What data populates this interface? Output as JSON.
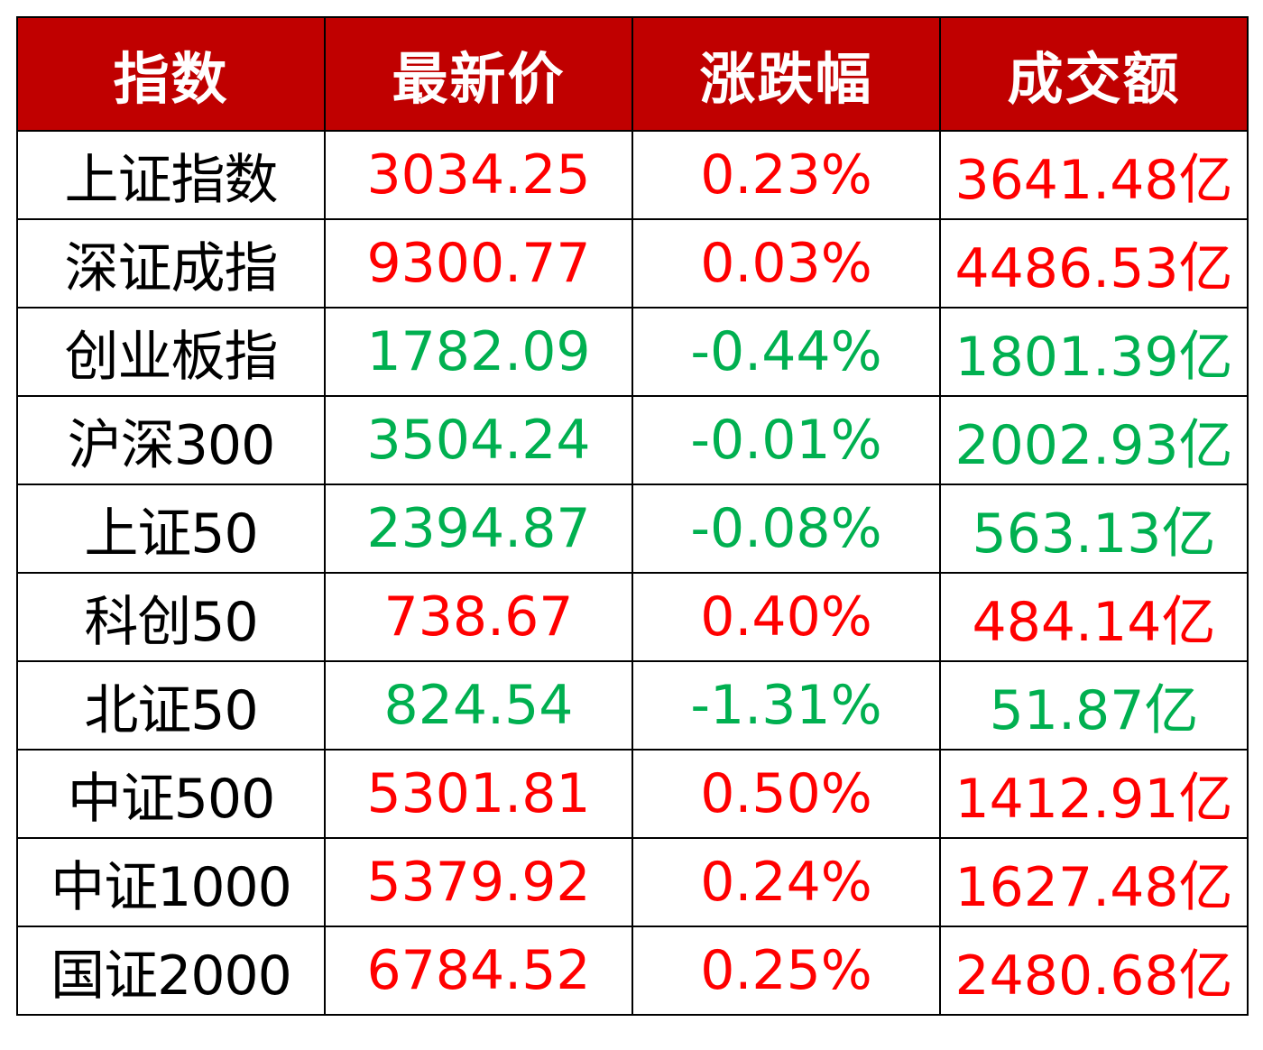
{
  "table": {
    "headers": [
      "指数",
      "最新价",
      "涨跌幅",
      "成交额"
    ],
    "rows": [
      {
        "name": "上证指数",
        "price": "3034.25",
        "change": "0.23%",
        "turnover": "3641.48亿",
        "trend": "up"
      },
      {
        "name": "深证成指",
        "price": "9300.77",
        "change": "0.03%",
        "turnover": "4486.53亿",
        "trend": "up"
      },
      {
        "name": "创业板指",
        "price": "1782.09",
        "change": "-0.44%",
        "turnover": "1801.39亿",
        "trend": "down"
      },
      {
        "name": "沪深300",
        "price": "3504.24",
        "change": "-0.01%",
        "turnover": "2002.93亿",
        "trend": "down"
      },
      {
        "name": "上证50",
        "price": "2394.87",
        "change": "-0.08%",
        "turnover": "563.13亿",
        "trend": "down"
      },
      {
        "name": "科创50",
        "price": "738.67",
        "change": "0.40%",
        "turnover": "484.14亿",
        "trend": "up"
      },
      {
        "name": "北证50",
        "price": "824.54",
        "change": "-1.31%",
        "turnover": "51.87亿",
        "trend": "down"
      },
      {
        "name": "中证500",
        "price": "5301.81",
        "change": "0.50%",
        "turnover": "1412.91亿",
        "trend": "up"
      },
      {
        "name": "中证1000",
        "price": "5379.92",
        "change": "0.24%",
        "turnover": "1627.48亿",
        "trend": "up"
      },
      {
        "name": "国证2000",
        "price": "6784.52",
        "change": "0.25%",
        "turnover": "2480.68亿",
        "trend": "up"
      }
    ]
  },
  "colors": {
    "header_bg": "#c00000",
    "header_text": "#ffffff",
    "up": "#ff0000",
    "down": "#00b050",
    "name_text": "#000000",
    "border": "#000000"
  }
}
